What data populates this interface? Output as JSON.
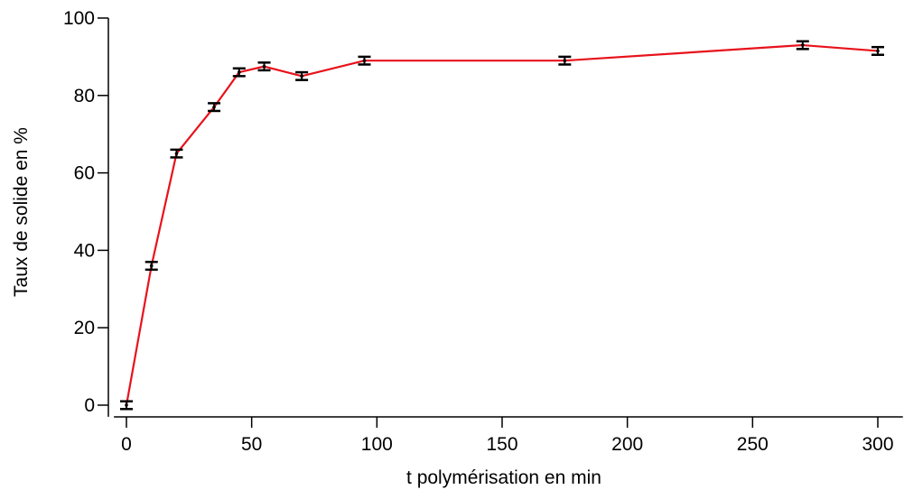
{
  "chart_data": {
    "type": "line",
    "title": "",
    "xlabel": "t polymérisation en min",
    "ylabel": "Taux de solide en %",
    "xlim": [
      -5,
      310
    ],
    "ylim": [
      -3,
      100
    ],
    "xticks": [
      0,
      50,
      100,
      150,
      200,
      250,
      300
    ],
    "yticks": [
      0,
      20,
      40,
      60,
      80,
      100
    ],
    "grid": false,
    "legend": "none",
    "series": [
      {
        "color": "#e8121b",
        "error_bar_color": "#000000",
        "error": 1,
        "points": [
          {
            "x": 0,
            "y": 0
          },
          {
            "x": 10,
            "y": 36
          },
          {
            "x": 20,
            "y": 65
          },
          {
            "x": 35,
            "y": 77
          },
          {
            "x": 45,
            "y": 86
          },
          {
            "x": 55,
            "y": 87.5
          },
          {
            "x": 70,
            "y": 85
          },
          {
            "x": 95,
            "y": 89
          },
          {
            "x": 175,
            "y": 89
          },
          {
            "x": 270,
            "y": 93
          },
          {
            "x": 300,
            "y": 91.5
          }
        ]
      }
    ]
  }
}
